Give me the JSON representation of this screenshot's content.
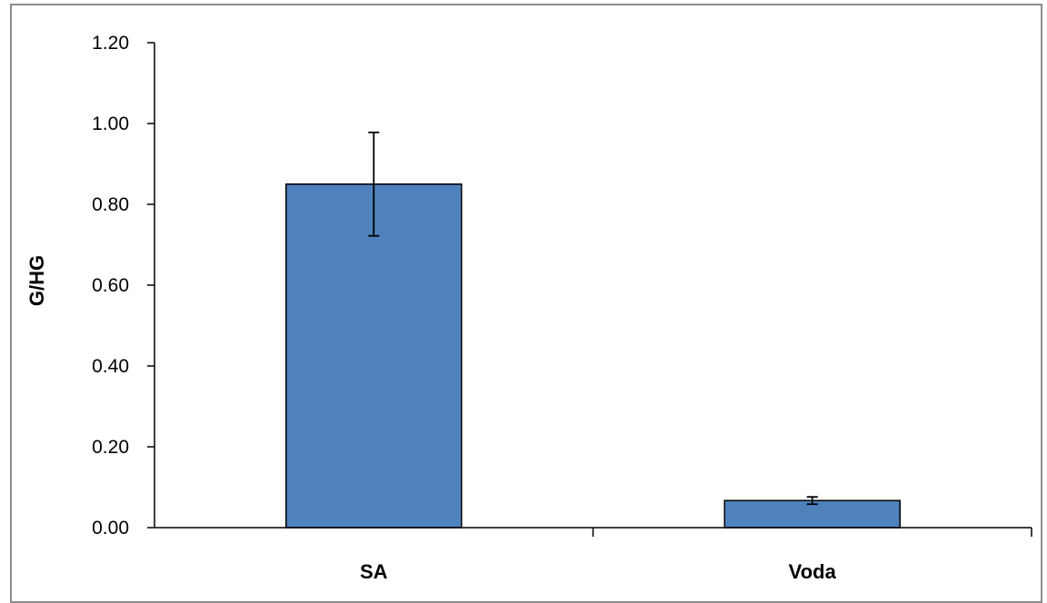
{
  "chart_data": {
    "type": "bar",
    "title": "",
    "xlabel": "",
    "ylabel": "G/HG",
    "categories": [
      "SA",
      "Voda"
    ],
    "values": [
      0.85,
      0.067
    ],
    "error": [
      0.128,
      0.009
    ],
    "yticks": [
      "0.00",
      "0.20",
      "0.40",
      "0.60",
      "0.80",
      "1.00",
      "1.20"
    ],
    "ylim": [
      0,
      1.2
    ],
    "grid": false,
    "legend": "none",
    "bar_color": "#4f81bd",
    "bar_edge_color": "#000000"
  }
}
